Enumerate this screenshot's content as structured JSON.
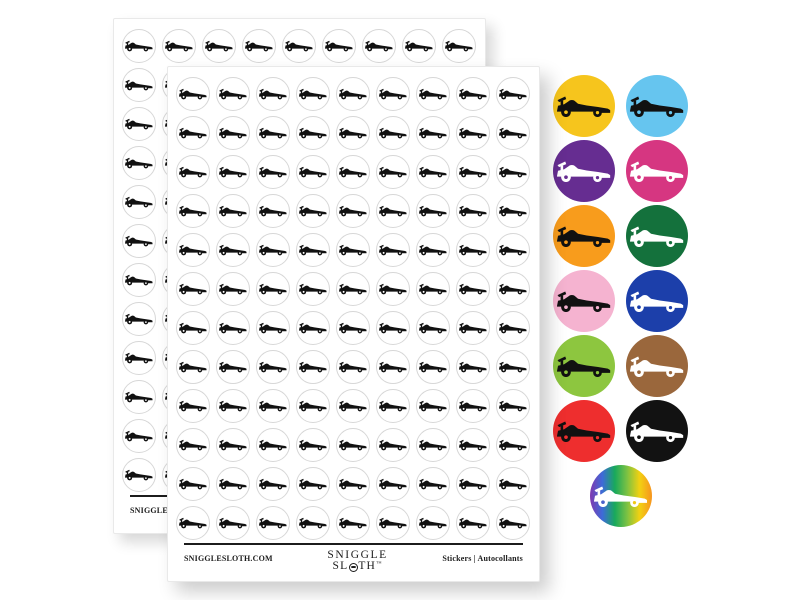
{
  "product_photo": {
    "background": "#ffffff",
    "sticker_design": "Formula One Racing Car",
    "sheet": {
      "count": 2,
      "rows": 12,
      "columns": 9,
      "paper_color": "#ffffff",
      "die_cut_outline_color": "#d7d7d7",
      "car_color": "#111111",
      "footer": {
        "website": "SNIGGLESLOTH.COM",
        "brand_top": "SNIGGLE",
        "brand_bottom_pre": "SL",
        "brand_bottom_post": "TH",
        "trademark": "™",
        "right_label": "Stickers | Autocollants"
      }
    },
    "variants": [
      {
        "name": "yellow",
        "bg": "#F6C51D",
        "car": "#111111"
      },
      {
        "name": "light-blue",
        "bg": "#66C5EF",
        "car": "#111111"
      },
      {
        "name": "purple",
        "bg": "#662D91",
        "car": "#ffffff"
      },
      {
        "name": "magenta",
        "bg": "#D63681",
        "car": "#ffffff"
      },
      {
        "name": "orange",
        "bg": "#F89C1C",
        "car": "#111111"
      },
      {
        "name": "dark-green",
        "bg": "#14713C",
        "car": "#ffffff"
      },
      {
        "name": "light-pink",
        "bg": "#F5B3D0",
        "car": "#111111"
      },
      {
        "name": "dark-blue",
        "bg": "#1C3FAA",
        "car": "#ffffff"
      },
      {
        "name": "light-green",
        "bg": "#8DC63F",
        "car": "#111111"
      },
      {
        "name": "brown",
        "bg": "#9A673C",
        "car": "#ffffff"
      },
      {
        "name": "red",
        "bg": "#EE2E2E",
        "car": "#111111"
      },
      {
        "name": "black",
        "bg": "#121212",
        "car": "#ffffff"
      },
      {
        "name": "rainbow",
        "car": "#ffffff",
        "gradient": [
          "#8038B0",
          "#3D6BD8",
          "#18A95C",
          "#7DC242",
          "#F2D112",
          "#F7941E"
        ],
        "hub_rear": "#4B62CC",
        "hub_front": "#F0C816"
      }
    ]
  }
}
